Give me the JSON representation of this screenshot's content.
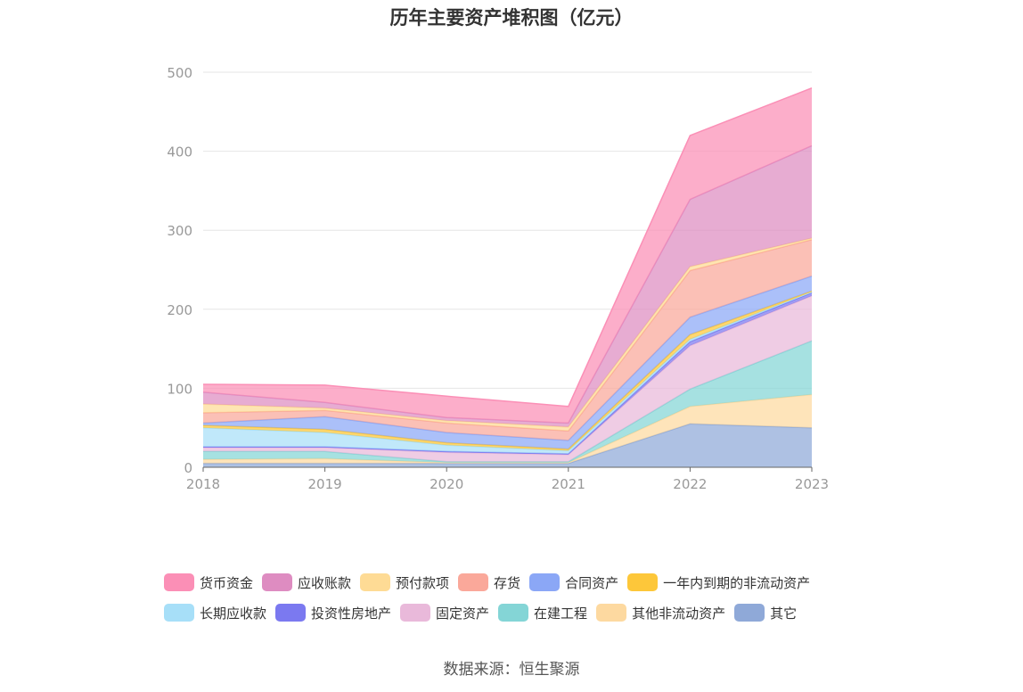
{
  "chart_data": {
    "type": "area",
    "stacked": true,
    "title": "历年主要资产堆积图（亿元）",
    "x": [
      "2018",
      "2019",
      "2020",
      "2021",
      "2022",
      "2023"
    ],
    "ylim": [
      0,
      500
    ],
    "yticks": [
      "0",
      "100",
      "200",
      "300",
      "400",
      "500"
    ],
    "grid": true,
    "legend_position": "bottom",
    "series": [
      {
        "name": "其它",
        "color": "#8fa9d8",
        "values": [
          5,
          5,
          5,
          5,
          55,
          50
        ]
      },
      {
        "name": "其他非流动资产",
        "color": "#fdd9a0",
        "values": [
          5,
          6,
          1,
          1,
          22,
          42
        ]
      },
      {
        "name": "在建工程",
        "color": "#84d5d6",
        "values": [
          10,
          9,
          1,
          1,
          22,
          68
        ]
      },
      {
        "name": "固定资产",
        "color": "#e9b9da",
        "values": [
          5,
          5,
          12,
          9,
          55,
          57
        ]
      },
      {
        "name": "投资性房地产",
        "color": "#7b79f0",
        "values": [
          1,
          1,
          1,
          1,
          5,
          4
        ]
      },
      {
        "name": "长期应收款",
        "color": "#a7dff8",
        "values": [
          24,
          18,
          8,
          4,
          3,
          1
        ]
      },
      {
        "name": "一年内到期的非流动资产",
        "color": "#fdc73a",
        "values": [
          3,
          4,
          3,
          2,
          6,
          1
        ]
      },
      {
        "name": "合同资产",
        "color": "#8ba7f6",
        "values": [
          3,
          16,
          13,
          11,
          22,
          19
        ]
      },
      {
        "name": "存货",
        "color": "#faa89a",
        "values": [
          13,
          8,
          12,
          12,
          59,
          46
        ]
      },
      {
        "name": "预付款项",
        "color": "#fedb95",
        "values": [
          11,
          3,
          3,
          5,
          5,
          2
        ]
      },
      {
        "name": "应收账款",
        "color": "#de8cc1",
        "values": [
          15,
          7,
          4,
          5,
          85,
          117
        ]
      },
      {
        "name": "货币资金",
        "color": "#fb8fb6",
        "values": [
          10,
          22,
          27,
          21,
          81,
          73
        ]
      }
    ],
    "legend_order": [
      "货币资金",
      "应收账款",
      "预付款项",
      "存货",
      "合同资产",
      "一年内到期的非流动资产",
      "长期应收款",
      "投资性房地产",
      "固定资产",
      "在建工程",
      "其他非流动资产",
      "其它"
    ]
  },
  "source": "数据来源：恒生聚源"
}
